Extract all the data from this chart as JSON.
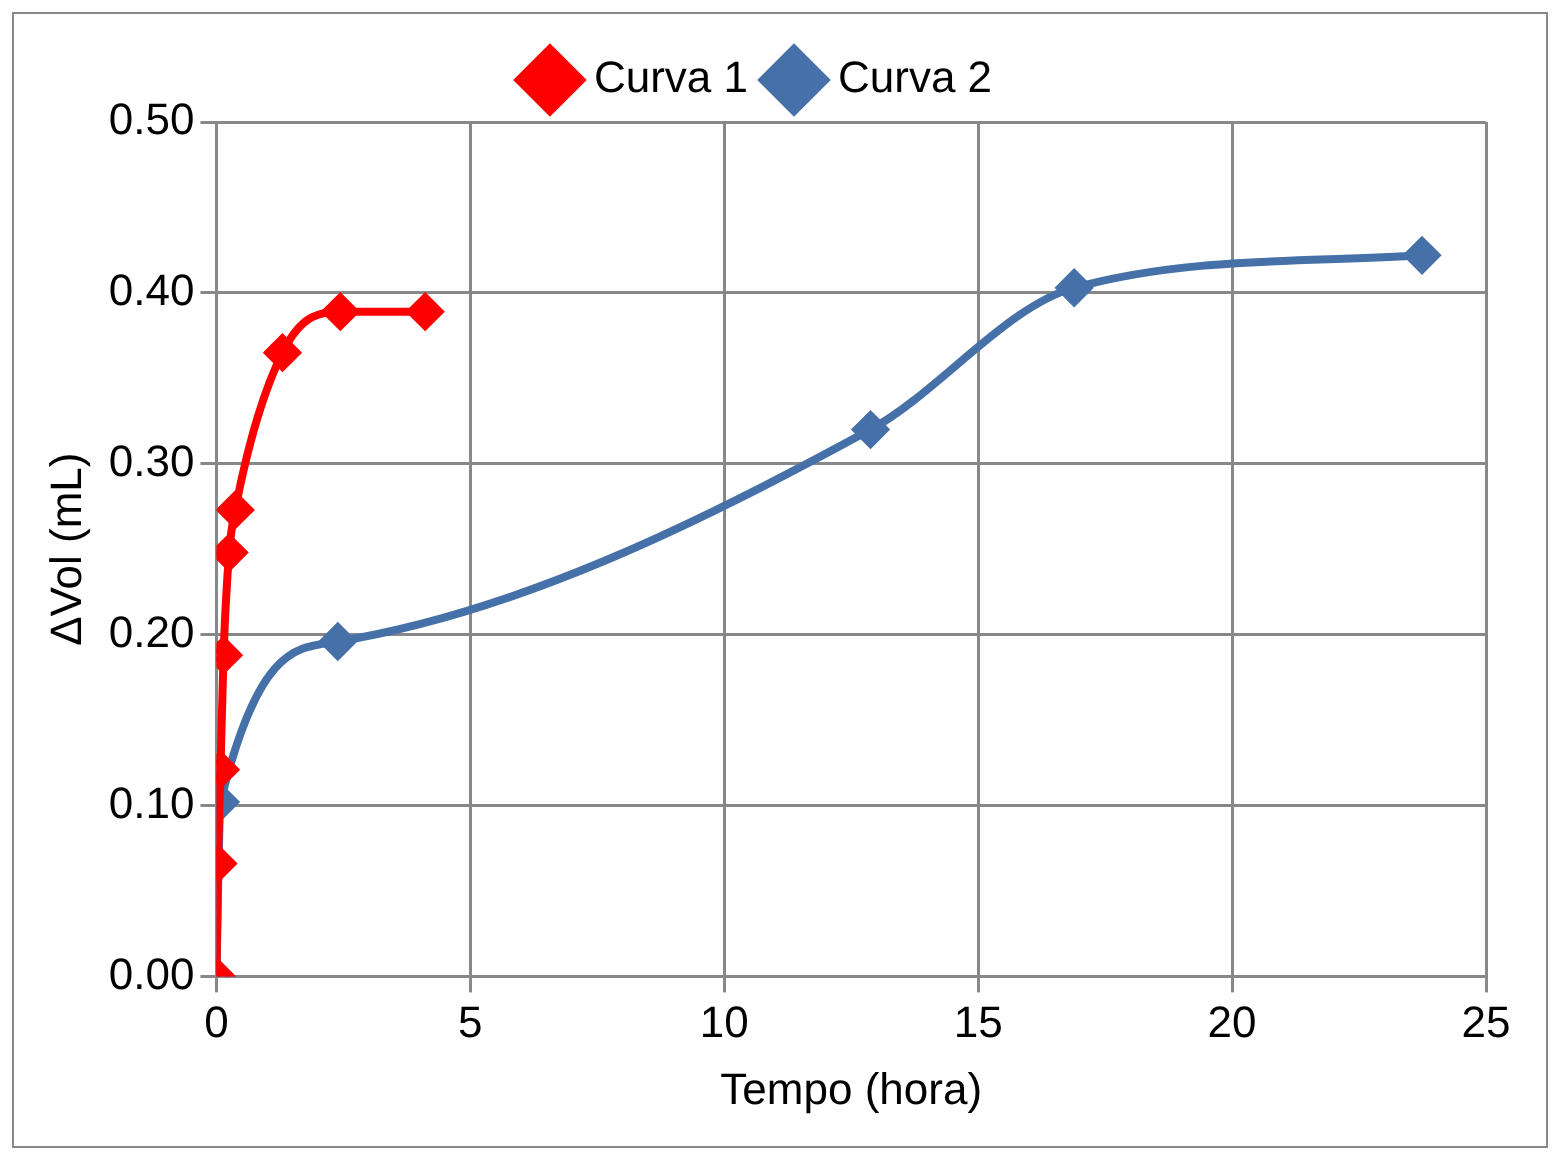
{
  "chart_data": {
    "type": "line",
    "xlabel": "Tempo (hora)",
    "ylabel": "ΔVol (mL)",
    "xlim": [
      0,
      25
    ],
    "xticks": [
      0,
      5,
      10,
      15,
      20,
      25
    ],
    "ylim": [
      0,
      0.5
    ],
    "yticks": [
      {
        "value": 0,
        "label": "0.00"
      },
      {
        "value": 0.1,
        "label": "0.10"
      },
      {
        "value": 0.2,
        "label": "0.20"
      },
      {
        "value": 0.3,
        "label": "0.30"
      },
      {
        "value": 0.4,
        "label": "0.40"
      },
      {
        "value": 0.5,
        "label": "0.50"
      }
    ],
    "grid": true,
    "legend": "top",
    "marker": "diamond",
    "line_style": "solid",
    "series": [
      {
        "name": "Curva 1",
        "color": "#ff0000",
        "x": [
          0,
          0.03,
          0.08,
          0.14,
          0.25,
          0.37,
          1.3,
          2.44,
          4.11
        ],
        "values": [
          0,
          0.066,
          0.121,
          0.188,
          0.248,
          0.273,
          0.365,
          0.389,
          0.389
        ]
      },
      {
        "name": "Curva 2",
        "color": "#4571a8",
        "x": [
          0,
          0.08,
          2.39,
          12.88,
          16.89,
          23.74
        ],
        "values": [
          0,
          0.102,
          0.196,
          0.32,
          0.403,
          0.422
        ]
      }
    ]
  }
}
